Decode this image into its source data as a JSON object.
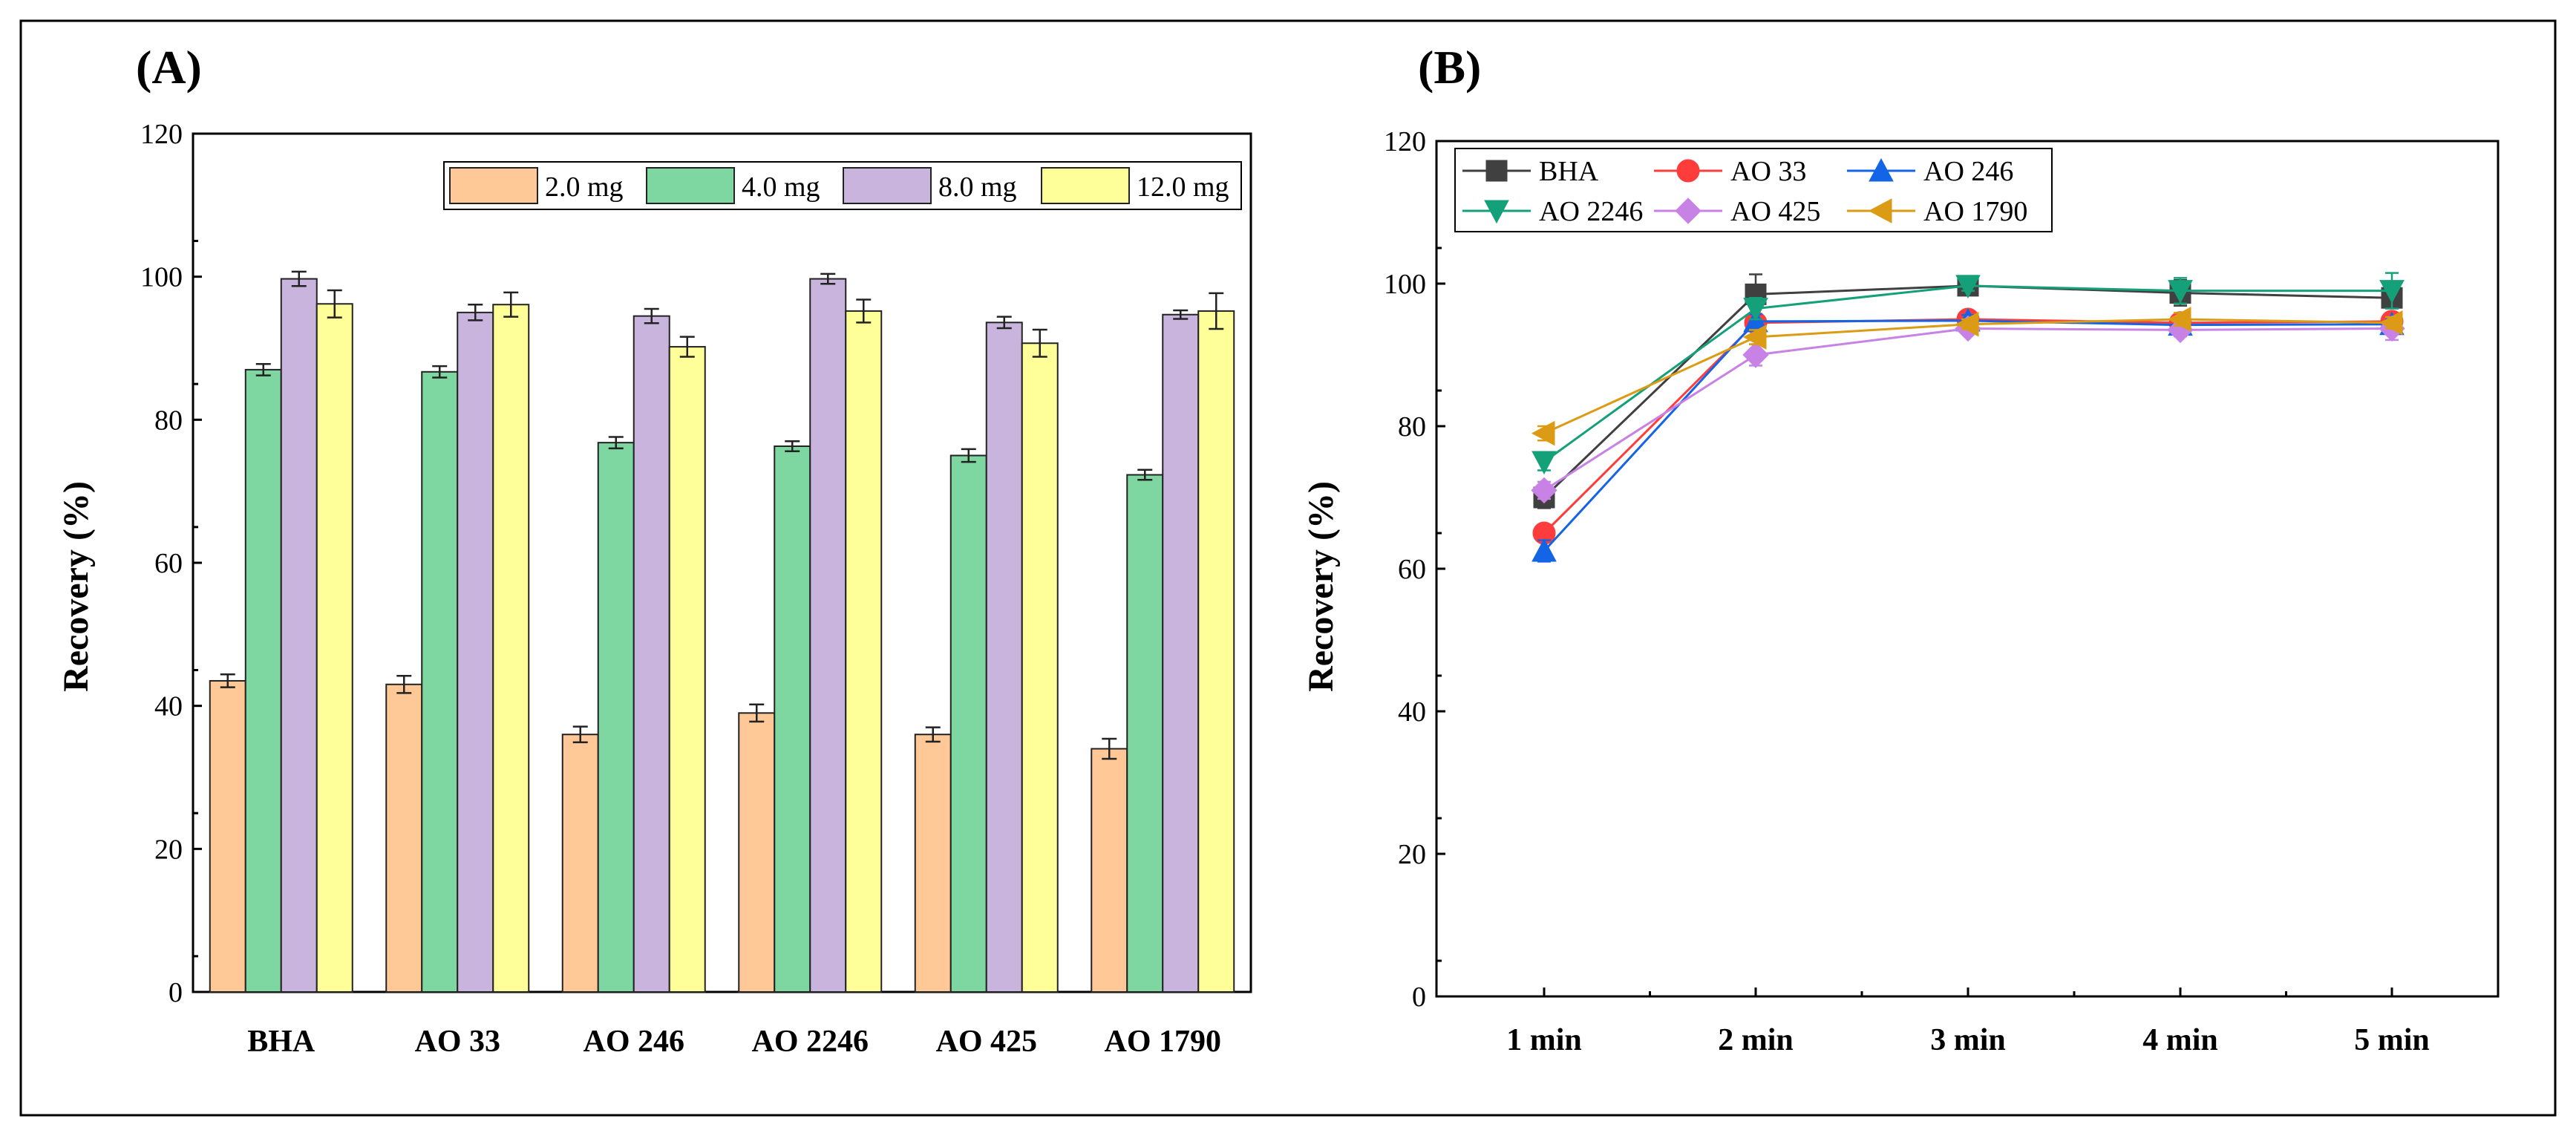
{
  "chart_data": [
    {
      "panel_label": "(A)",
      "type": "bar",
      "ylabel": "Recovery (%)",
      "xlabel": "",
      "ylim": [
        0,
        120
      ],
      "yticks": [
        "0",
        "20",
        "40",
        "60",
        "80",
        "100",
        "120"
      ],
      "categories": [
        "BHA",
        "AO 33",
        "AO 246",
        "AO 2246",
        "AO 425",
        "AO 1790"
      ],
      "legend_position": "top-right",
      "series": [
        {
          "name": "2.0 mg",
          "color": "#FFC896",
          "values": [
            43.5,
            43.0,
            36.0,
            39.0,
            36.0,
            34.0
          ],
          "errors": [
            0.9,
            1.2,
            1.1,
            1.2,
            1.0,
            1.4
          ]
        },
        {
          "name": "4.0 mg",
          "color": "#7ED7A0",
          "values": [
            87.0,
            86.7,
            76.8,
            76.3,
            75.0,
            72.3
          ],
          "errors": [
            0.8,
            0.8,
            0.8,
            0.7,
            0.9,
            0.7
          ]
        },
        {
          "name": "8.0 mg",
          "color": "#C8B4DC",
          "values": [
            99.7,
            95.0,
            94.5,
            99.7,
            93.6,
            94.7
          ],
          "errors": [
            1.0,
            1.1,
            1.0,
            0.7,
            0.8,
            0.6
          ]
        },
        {
          "name": "12.0 mg",
          "color": "#FFFF99",
          "values": [
            96.2,
            96.1,
            90.2,
            95.2,
            90.7,
            95.2
          ],
          "errors": [
            1.9,
            1.7,
            1.4,
            1.6,
            1.9,
            2.5
          ]
        }
      ]
    },
    {
      "panel_label": "(B)",
      "type": "line",
      "ylabel": "Recovery (%)",
      "xlabel": "",
      "ylim": [
        0,
        120
      ],
      "yticks": [
        "0",
        "20",
        "40",
        "60",
        "80",
        "100",
        "120"
      ],
      "categories": [
        "1 min",
        "2 min",
        "3 min",
        "4 min",
        "5 min"
      ],
      "legend_position": "top-left",
      "series": [
        {
          "name": "BHA",
          "color": "#404040",
          "marker": "square",
          "values": [
            70.0,
            98.5,
            99.7,
            98.7,
            98.0
          ],
          "errors": [
            1.5,
            2.8,
            0.8,
            1.8,
            1.2
          ]
        },
        {
          "name": "AO 33",
          "color": "#FF3C3C",
          "marker": "circle",
          "values": [
            65.0,
            94.5,
            95.0,
            94.5,
            94.7
          ],
          "errors": [
            0.8,
            1.0,
            0.7,
            0.8,
            0.7
          ]
        },
        {
          "name": "AO 246",
          "color": "#1464E6",
          "marker": "triangle-up",
          "values": [
            62.5,
            94.7,
            94.8,
            94.2,
            94.3
          ],
          "errors": [
            1.5,
            1.0,
            0.8,
            0.9,
            0.8
          ]
        },
        {
          "name": "AO 2246",
          "color": "#14A078",
          "marker": "triangle-down",
          "values": [
            75.0,
            96.5,
            99.7,
            99.0,
            99.0
          ],
          "errors": [
            1.2,
            1.5,
            0.7,
            1.8,
            2.5
          ]
        },
        {
          "name": "AO 425",
          "color": "#C882E6",
          "marker": "diamond",
          "values": [
            71.0,
            90.0,
            93.7,
            93.5,
            93.7
          ],
          "errors": [
            1.2,
            1.5,
            0.8,
            0.9,
            1.6
          ]
        },
        {
          "name": "AO 1790",
          "color": "#DC9B14",
          "marker": "triangle-left",
          "values": [
            79.0,
            92.5,
            94.3,
            95.0,
            94.5
          ],
          "errors": [
            1.0,
            1.0,
            0.7,
            0.9,
            0.8
          ]
        }
      ]
    }
  ]
}
